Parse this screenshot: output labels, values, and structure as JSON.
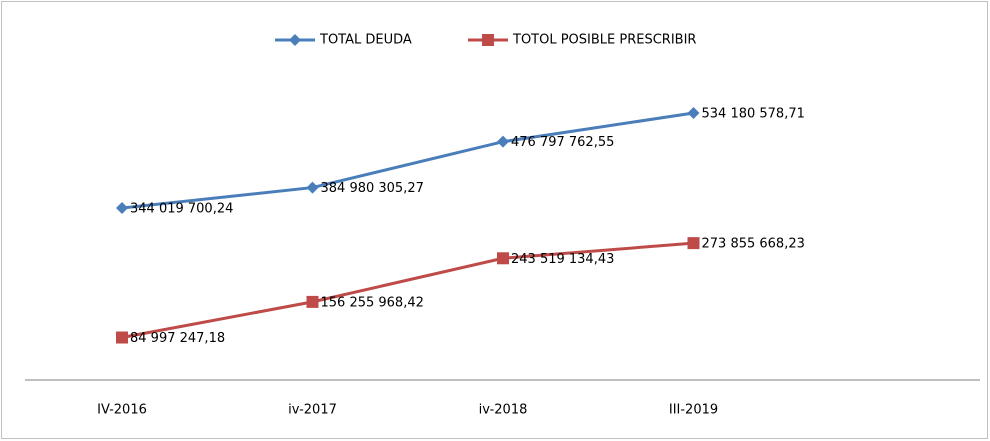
{
  "chart_data": {
    "type": "line",
    "categories": [
      "IV-2016",
      "iv-2017",
      "iv-2018",
      "III-2019"
    ],
    "series": [
      {
        "name": "TOTAL DEUDA",
        "color": "#4a7ebb",
        "marker": "diamond",
        "values": [
          344019700.24,
          384980305.27,
          476797762.55,
          534180578.71
        ],
        "value_labels": [
          "344 019 700,24",
          "384 980 305,27",
          "476 797 762,55",
          "534 180 578,71"
        ]
      },
      {
        "name": "TOTOL POSIBLE PRESCRIBIR",
        "color": "#be4b48",
        "marker": "square",
        "values": [
          84997247.18,
          156255968.42,
          243519134.43,
          273855668.23
        ],
        "value_labels": [
          "84 997 247,18",
          "156 255 968,42",
          "243 519 134,43",
          "273 855 668,23"
        ]
      }
    ],
    "legend": "top"
  }
}
